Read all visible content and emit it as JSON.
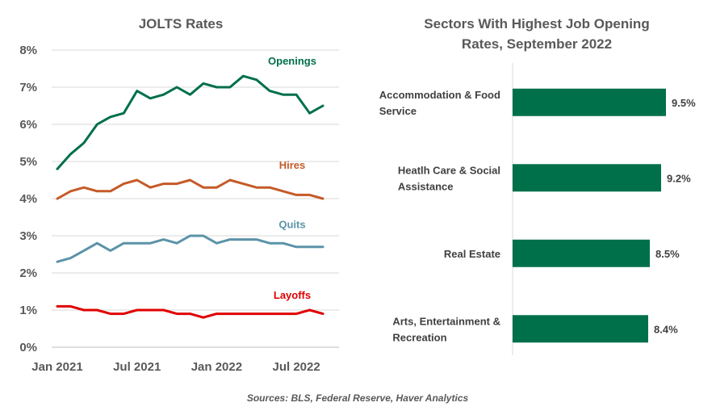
{
  "chart_data": [
    {
      "type": "line",
      "title": "JOLTS Rates",
      "xlabel": "",
      "ylabel": "",
      "ylim": [
        0,
        8
      ],
      "y_ticks": [
        "0%",
        "1%",
        "2%",
        "3%",
        "4%",
        "5%",
        "6%",
        "7%",
        "8%"
      ],
      "x_tick_labels": [
        "Jan 2021",
        "Jul 2021",
        "Jan 2022",
        "Jul 2022"
      ],
      "x": [
        "Jan 2021",
        "Feb 2021",
        "Mar 2021",
        "Apr 2021",
        "May 2021",
        "Jun 2021",
        "Jul 2021",
        "Aug 2021",
        "Sep 2021",
        "Oct 2021",
        "Nov 2021",
        "Dec 2021",
        "Jan 2022",
        "Feb 2022",
        "Mar 2022",
        "Apr 2022",
        "May 2022",
        "Jun 2022",
        "Jul 2022",
        "Aug 2022",
        "Sep 2022"
      ],
      "grid": true,
      "series": [
        {
          "name": "Openings",
          "color": "#00704A",
          "values": [
            4.8,
            5.2,
            5.5,
            6.0,
            6.2,
            6.3,
            6.9,
            6.7,
            6.8,
            7.0,
            6.8,
            7.1,
            7.0,
            7.0,
            7.3,
            7.2,
            6.9,
            6.8,
            6.8,
            6.3,
            6.5
          ]
        },
        {
          "name": "Hires",
          "color": "#C55A28",
          "values": [
            4.0,
            4.2,
            4.3,
            4.2,
            4.2,
            4.4,
            4.5,
            4.3,
            4.4,
            4.4,
            4.5,
            4.3,
            4.3,
            4.5,
            4.4,
            4.3,
            4.3,
            4.2,
            4.1,
            4.1,
            4.0
          ]
        },
        {
          "name": "Quits",
          "color": "#5B93A8",
          "values": [
            2.3,
            2.4,
            2.6,
            2.8,
            2.6,
            2.8,
            2.8,
            2.8,
            2.9,
            2.8,
            3.0,
            3.0,
            2.8,
            2.9,
            2.9,
            2.9,
            2.8,
            2.8,
            2.7,
            2.7,
            2.7
          ]
        },
        {
          "name": "Layoffs",
          "color": "#E00000",
          "values": [
            1.1,
            1.1,
            1.0,
            1.0,
            0.9,
            0.9,
            1.0,
            1.0,
            1.0,
            0.9,
            0.9,
            0.8,
            0.9,
            0.9,
            0.9,
            0.9,
            0.9,
            0.9,
            0.9,
            1.0,
            0.9
          ]
        }
      ]
    },
    {
      "type": "bar",
      "orientation": "horizontal",
      "title_lines": [
        "Sectors With Highest Job Opening",
        "Rates, September 2022"
      ],
      "color": "#00704A",
      "xlim": [
        0,
        10
      ],
      "categories": [
        {
          "lines": [
            "Accommodation & Food",
            "Service"
          ],
          "value": 9.5,
          "label": "9.5%"
        },
        {
          "lines": [
            "Heatlh Care & Social",
            "Assistance"
          ],
          "value": 9.2,
          "label": "9.2%"
        },
        {
          "lines": [
            "Real Estate"
          ],
          "value": 8.5,
          "label": "8.5%"
        },
        {
          "lines": [
            "Arts, Entertainment &",
            "Recreation"
          ],
          "value": 8.4,
          "label": "8.4%"
        }
      ]
    }
  ],
  "source": "Sources: BLS, Federal Reserve, Haver Analytics",
  "grid_color": "#D9D9D9",
  "axis_color": "#BFBFBF"
}
